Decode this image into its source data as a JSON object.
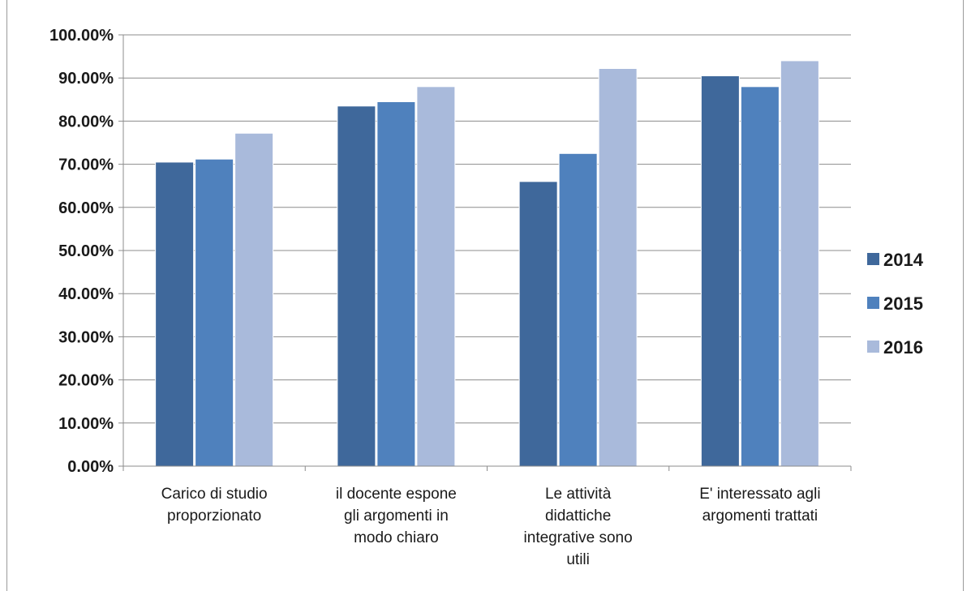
{
  "chart_data": {
    "type": "bar",
    "title": "",
    "xlabel": "",
    "ylabel": "",
    "ylim": [
      0,
      1.0
    ],
    "y_ticks": [
      0,
      0.1,
      0.2,
      0.3,
      0.4,
      0.5,
      0.6,
      0.7,
      0.8,
      0.9,
      1.0
    ],
    "y_tick_labels": [
      "0.00%",
      "10.00%",
      "20.00%",
      "30.00%",
      "40.00%",
      "50.00%",
      "60.00%",
      "70.00%",
      "80.00%",
      "90.00%",
      "100.00%"
    ],
    "grid": true,
    "legend_position": "right",
    "categories": [
      [
        "Carico di studio",
        "proporzionato"
      ],
      [
        "il docente espone",
        "gli argomenti in",
        "modo chiaro"
      ],
      [
        "Le attività",
        "didattiche",
        "integrative sono",
        "utili"
      ],
      [
        "E' interessato agli",
        "argomenti trattati"
      ]
    ],
    "series": [
      {
        "name": "2014",
        "color": "#3f689b",
        "values": [
          0.705,
          0.835,
          0.66,
          0.905
        ]
      },
      {
        "name": "2015",
        "color": "#4f81bd",
        "values": [
          0.712,
          0.845,
          0.725,
          0.88
        ]
      },
      {
        "name": "2016",
        "color": "#a9badb",
        "values": [
          0.772,
          0.88,
          0.922,
          0.94
        ]
      }
    ]
  }
}
